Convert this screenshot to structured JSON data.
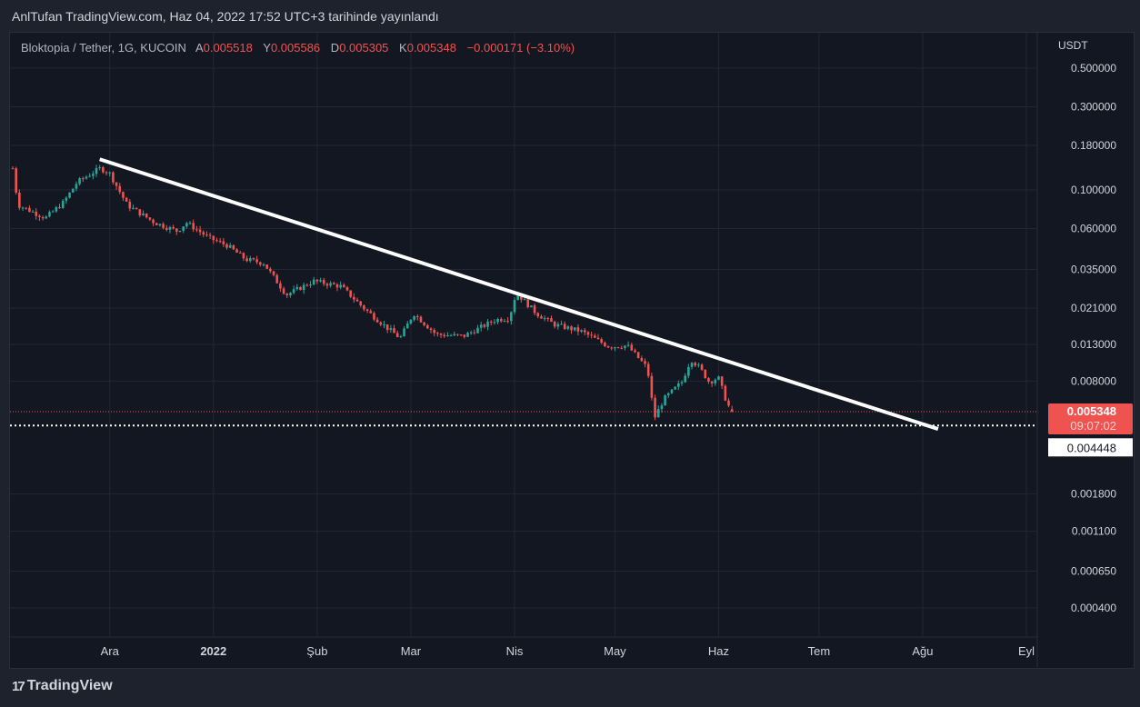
{
  "header": {
    "published": "AnlTufan TradingView.com, Haz 04, 2022 17:52 UTC+3 tarihinde yayınlandı"
  },
  "legend": {
    "symbol": "Bloktopia / Tether, 1G, KUCOIN",
    "open_label": "A",
    "open": "0.005518",
    "high_label": "Y",
    "high": "0.005586",
    "low_label": "D",
    "low": "0.005305",
    "close_label": "K",
    "close": "0.005348",
    "change": "−0.000171 (−3.10%)"
  },
  "price_axis": {
    "currency": "USDT",
    "current_price": "0.005348",
    "countdown": "09:07:02",
    "line_price": "0.004448"
  },
  "brand": {
    "name": "TradingView"
  },
  "colors": {
    "up": "#26a69a",
    "down": "#ef5350",
    "bg": "#131722"
  },
  "chart_data": {
    "type": "candlestick",
    "scale": "log",
    "start_date": "2021-11-02",
    "interval": "1D",
    "yticks": [
      {
        "v": 0.5,
        "label": "0.500000"
      },
      {
        "v": 0.3,
        "label": "0.300000"
      },
      {
        "v": 0.18,
        "label": "0.180000"
      },
      {
        "v": 0.1,
        "label": "0.100000"
      },
      {
        "v": 0.06,
        "label": "0.060000"
      },
      {
        "v": 0.035,
        "label": "0.035000"
      },
      {
        "v": 0.021,
        "label": "0.021000"
      },
      {
        "v": 0.013,
        "label": "0.013000"
      },
      {
        "v": 0.008,
        "label": "0.008000"
      },
      {
        "v": 0.0018,
        "label": "0.001800"
      },
      {
        "v": 0.0011,
        "label": "0.001100"
      },
      {
        "v": 0.00065,
        "label": "0.000650"
      },
      {
        "v": 0.0004,
        "label": "0.000400"
      }
    ],
    "xticks": [
      {
        "day": 29,
        "label": "Ara"
      },
      {
        "day": 60,
        "label": "2022"
      },
      {
        "day": 91,
        "label": "Şub"
      },
      {
        "day": 119,
        "label": "Mar"
      },
      {
        "day": 150,
        "label": "Nis"
      },
      {
        "day": 180,
        "label": "May"
      },
      {
        "day": 211,
        "label": "Haz"
      },
      {
        "day": 241,
        "label": "Tem"
      },
      {
        "day": 272,
        "label": "Ağu"
      },
      {
        "day": 303,
        "label": "Eyl"
      }
    ],
    "close_path": [
      [
        0,
        0.133
      ],
      [
        1.6,
        0.082
      ],
      [
        9.8,
        0.069
      ],
      [
        15.2,
        0.085
      ],
      [
        19.3,
        0.111
      ],
      [
        26.1,
        0.133
      ],
      [
        28.8,
        0.126
      ],
      [
        34.2,
        0.082
      ],
      [
        42.4,
        0.065
      ],
      [
        49.2,
        0.058
      ],
      [
        51.9,
        0.065
      ],
      [
        58.7,
        0.053
      ],
      [
        64.1,
        0.048
      ],
      [
        69.6,
        0.04
      ],
      [
        75,
        0.038
      ],
      [
        81.8,
        0.025
      ],
      [
        89.9,
        0.03
      ],
      [
        98.1,
        0.028
      ],
      [
        104.9,
        0.021
      ],
      [
        111.7,
        0.0163
      ],
      [
        115.8,
        0.0141
      ],
      [
        119.8,
        0.0196
      ],
      [
        126.6,
        0.0148
      ],
      [
        134.8,
        0.0145
      ],
      [
        144.3,
        0.018
      ],
      [
        148.4,
        0.0184
      ],
      [
        150.5,
        0.0258
      ],
      [
        156.5,
        0.0196
      ],
      [
        161.9,
        0.0169
      ],
      [
        170.1,
        0.0154
      ],
      [
        178.3,
        0.0126
      ],
      [
        183.7,
        0.0128
      ],
      [
        189.7,
        0.0095
      ],
      [
        191.8,
        0.0049
      ],
      [
        194.6,
        0.0063
      ],
      [
        200,
        0.0079
      ],
      [
        202.7,
        0.0107
      ],
      [
        205.4,
        0.0095
      ],
      [
        208.2,
        0.0079
      ],
      [
        210.9,
        0.0084
      ],
      [
        213.6,
        0.0059
      ],
      [
        215.2,
        0.00535
      ]
    ],
    "trendline": [
      [
        26,
        0.15
      ],
      [
        276.6,
        0.00425
      ]
    ],
    "horizontal_line": 0.004448
  }
}
